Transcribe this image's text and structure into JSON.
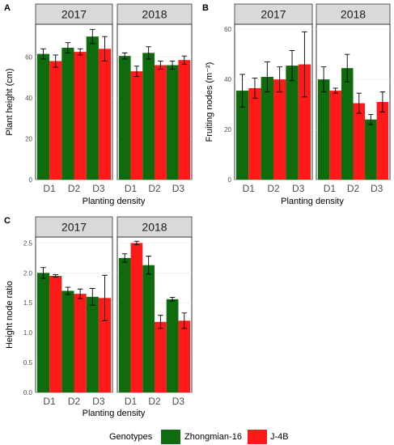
{
  "legend": {
    "title": "Genotypes",
    "items": [
      {
        "label": "Zhongmian-16",
        "color": "#0e6b0e"
      },
      {
        "label": "J-4B",
        "color": "#ff1a1a"
      }
    ]
  },
  "chart_data": [
    {
      "panel": "A",
      "type": "bar",
      "xlabel": "Planting density",
      "ylabel": "Plant height (cm)",
      "ylim": [
        0,
        76
      ],
      "yticks": [
        0,
        20,
        40,
        60
      ],
      "categories": [
        "D1",
        "D2",
        "D3"
      ],
      "facets": [
        {
          "label": "2017",
          "series": [
            {
              "name": "Zhongmian-16",
              "values": [
                61.5,
                64.5,
                70
              ],
              "errors": [
                2.5,
                2.5,
                3.5
              ]
            },
            {
              "name": "J-4B",
              "values": [
                58,
                62.5,
                64
              ],
              "errors": [
                3,
                1.5,
                6
              ]
            }
          ]
        },
        {
          "label": "2018",
          "series": [
            {
              "name": "Zhongmian-16",
              "values": [
                60.5,
                62,
                56
              ],
              "errors": [
                1.5,
                3,
                2
              ]
            },
            {
              "name": "J-4B",
              "values": [
                53,
                56,
                58.5
              ],
              "errors": [
                2.5,
                2,
                2
              ]
            }
          ]
        }
      ]
    },
    {
      "panel": "B",
      "type": "bar",
      "xlabel": "Planting density",
      "ylabel": "Fruiting nodes (m⁻²)",
      "ylim": [
        0,
        62
      ],
      "yticks": [
        0,
        20,
        40,
        60
      ],
      "categories": [
        "D1",
        "D2",
        "D3"
      ],
      "facets": [
        {
          "label": "2017",
          "series": [
            {
              "name": "Zhongmian-16",
              "values": [
                35.5,
                41,
                45.5
              ],
              "errors": [
                6.5,
                6,
                6
              ]
            },
            {
              "name": "J-4B",
              "values": [
                36.5,
                40,
                46
              ],
              "errors": [
                4,
                5,
                13
              ]
            }
          ]
        },
        {
          "label": "2018",
          "series": [
            {
              "name": "Zhongmian-16",
              "values": [
                40,
                44.5,
                24
              ],
              "errors": [
                5,
                5.5,
                2
              ]
            },
            {
              "name": "J-4B",
              "values": [
                35.5,
                30.5,
                31
              ],
              "errors": [
                1,
                4,
                4
              ]
            }
          ]
        }
      ]
    },
    {
      "panel": "C",
      "type": "bar",
      "xlabel": "Planting density",
      "ylabel": "Height node ratio",
      "ylim": [
        0,
        2.6
      ],
      "yticks": [
        0.0,
        0.5,
        1.0,
        1.5,
        2.0,
        2.5
      ],
      "ytick_format": "1dp",
      "categories": [
        "D1",
        "D2",
        "D3"
      ],
      "facets": [
        {
          "label": "2017",
          "series": [
            {
              "name": "Zhongmian-16",
              "values": [
                2.0,
                1.7,
                1.6
              ],
              "errors": [
                0.09,
                0.06,
                0.14
              ]
            },
            {
              "name": "J-4B",
              "values": [
                1.95,
                1.65,
                1.58
              ],
              "errors": [
                0.02,
                0.08,
                0.38
              ]
            }
          ]
        },
        {
          "label": "2018",
          "series": [
            {
              "name": "Zhongmian-16",
              "values": [
                2.25,
                2.13,
                1.56
              ],
              "errors": [
                0.07,
                0.15,
                0.03
              ]
            },
            {
              "name": "J-4B",
              "values": [
                2.5,
                1.18,
                1.2
              ],
              "errors": [
                0.03,
                0.11,
                0.13
              ]
            }
          ]
        }
      ]
    }
  ]
}
